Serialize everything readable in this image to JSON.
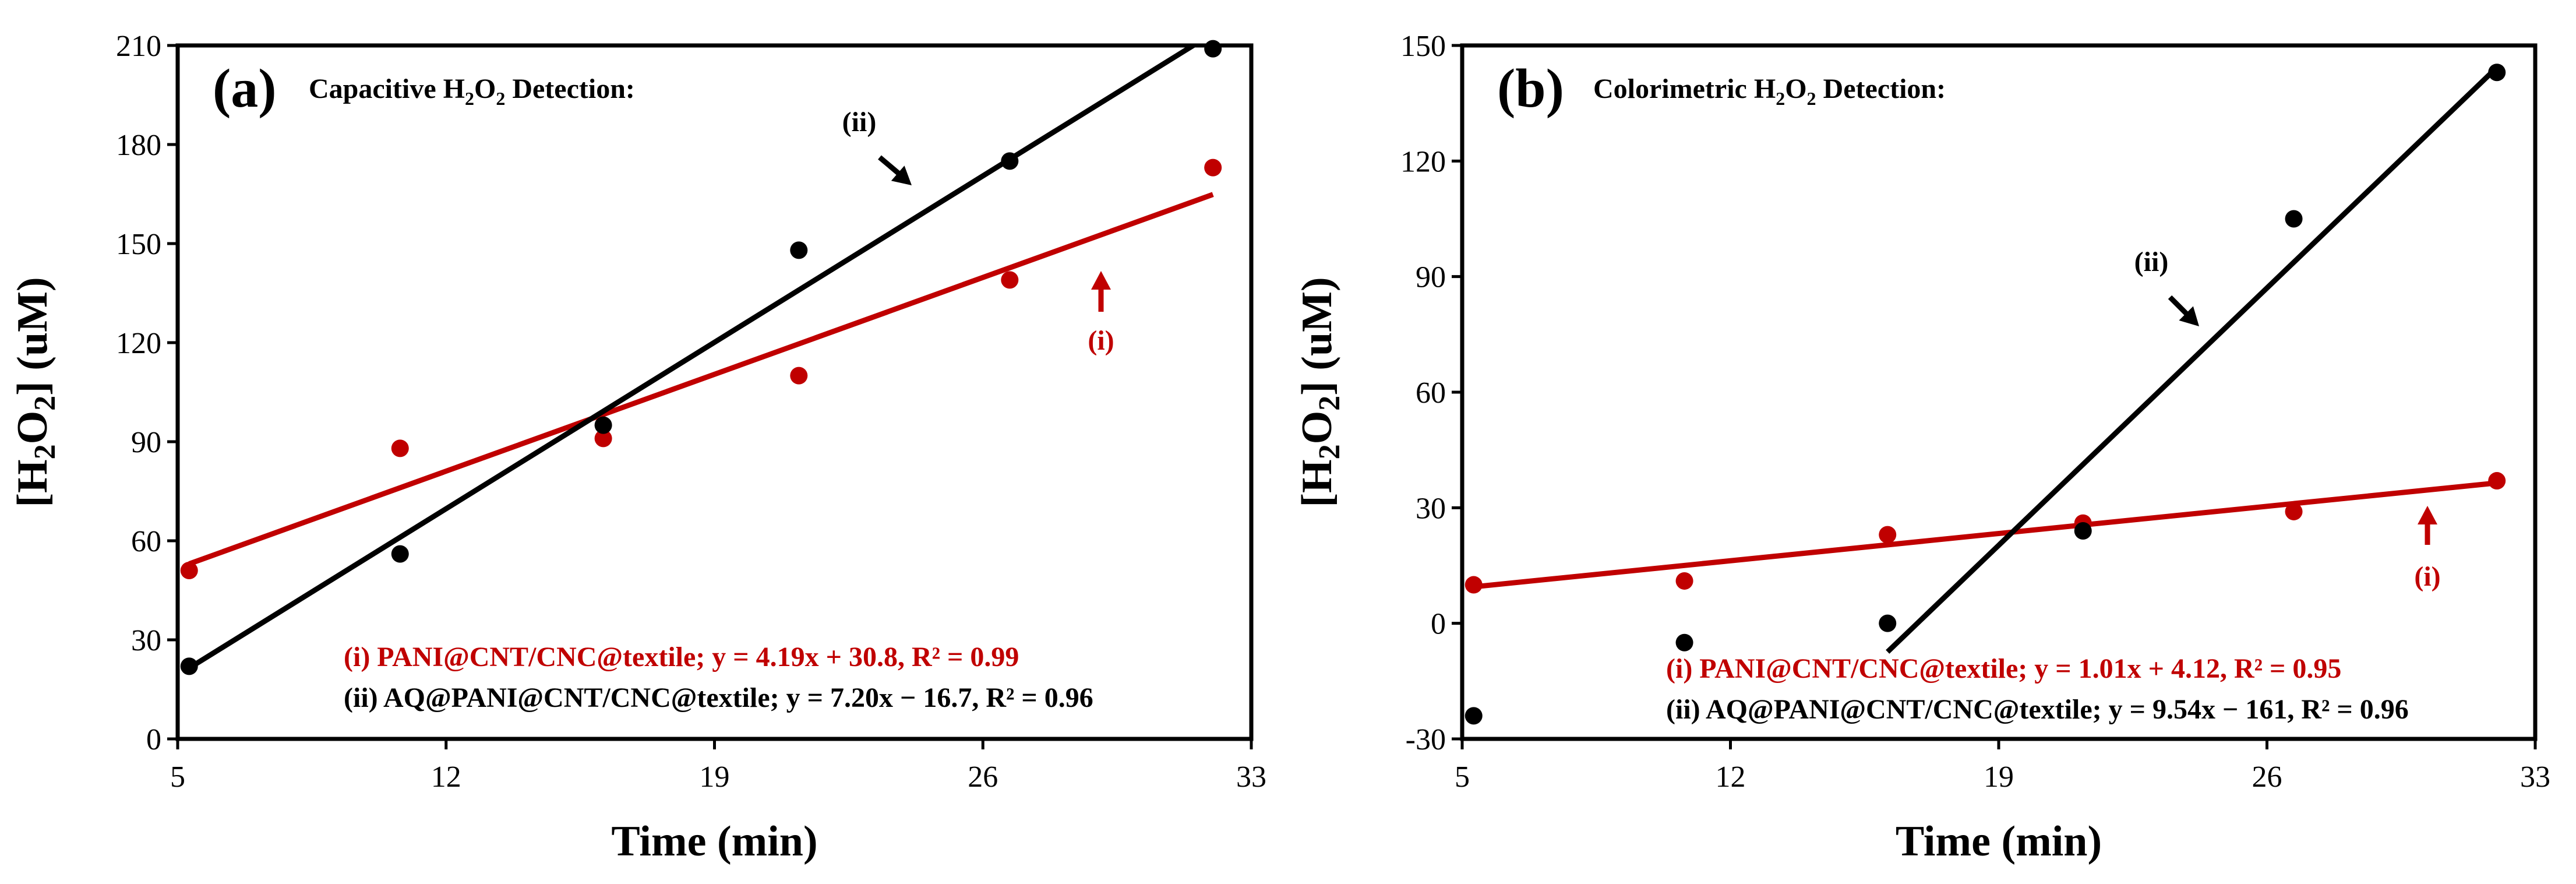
{
  "colors": {
    "series_i": "#C00000",
    "series_ii": "#000000"
  },
  "chart_data": [
    {
      "type": "scatter",
      "panel_label": "(a)",
      "title": "Capacitive H2O2 Detection:",
      "xlabel": "Time (min)",
      "ylabel": "[H2O2] (uM)",
      "xlim": [
        5,
        33
      ],
      "ylim": [
        0,
        210
      ],
      "xticks": [
        "5",
        "12",
        "19",
        "26",
        "33"
      ],
      "yticks": [
        "0",
        "30",
        "60",
        "90",
        "120",
        "150",
        "180",
        "210"
      ],
      "series": [
        {
          "name": "(i) PANI@CNT/CNC@textile",
          "label": "(i)",
          "legend": "(i) PANI@CNT/CNC@textile; y = 4.19x + 30.8, R² = 0.99",
          "color": "#C00000",
          "x": [
            5.3,
            10.8,
            16.1,
            21.2,
            26.7,
            32.0
          ],
          "y": [
            51,
            88,
            91,
            110,
            139,
            173
          ],
          "fit": {
            "slope": 4.19,
            "intercept": 30.8,
            "x_range": [
              5.3,
              32.0
            ]
          }
        },
        {
          "name": "(ii) AQ@PANI@CNT/CNC@textile",
          "label": "(ii)",
          "legend": "(ii) AQ@PANI@CNT/CNC@textile; y = 7.20x − 16.7, R² = 0.96",
          "color": "#000000",
          "x": [
            5.3,
            10.8,
            16.1,
            21.2,
            26.7,
            32.0
          ],
          "y": [
            22,
            56,
            95,
            148,
            175,
            209
          ],
          "fit": {
            "slope": 7.2,
            "intercept": -16.7,
            "x_range": [
              5.3,
              32.0
            ]
          }
        }
      ]
    },
    {
      "type": "scatter",
      "panel_label": "(b)",
      "title": "Colorimetric H2O2 Detection:",
      "xlabel": "Time (min)",
      "ylabel": "[H2O2] (uM)",
      "xlim": [
        5,
        33
      ],
      "ylim": [
        -30,
        150
      ],
      "xticks": [
        "5",
        "12",
        "19",
        "26",
        "33"
      ],
      "yticks": [
        "-30",
        "0",
        "30",
        "60",
        "90",
        "120",
        "150"
      ],
      "series": [
        {
          "name": "(i) PANI@CNT/CNC@textile",
          "label": "(i)",
          "legend": "(i) PANI@CNT/CNC@textile; y = 1.01x + 4.12, R² = 0.95",
          "color": "#C00000",
          "x": [
            5.3,
            10.8,
            16.1,
            21.2,
            26.7,
            32.0
          ],
          "y": [
            10,
            11,
            23,
            26,
            29,
            37
          ],
          "fit": {
            "slope": 1.01,
            "intercept": 4.12,
            "x_range": [
              5.3,
              32.0
            ]
          }
        },
        {
          "name": "(ii) AQ@PANI@CNT/CNC@textile",
          "label": "(ii)",
          "legend": "(ii) AQ@PANI@CNT/CNC@textile; y = 9.54x − 161, R² = 0.96",
          "color": "#000000",
          "x": [
            5.3,
            10.8,
            16.1,
            21.2,
            26.7,
            32.0
          ],
          "y": [
            -24,
            -5,
            0,
            24,
            105,
            143
          ],
          "fit": {
            "slope": 9.54,
            "intercept": -161,
            "x_range": [
              16.1,
              32.0
            ]
          }
        }
      ]
    }
  ]
}
